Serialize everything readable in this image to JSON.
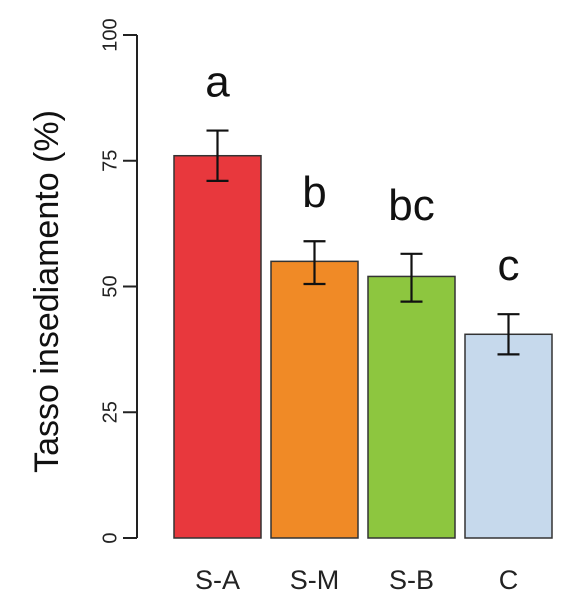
{
  "chart_data": {
    "type": "bar",
    "title": "",
    "xlabel": "",
    "ylabel": "Tasso insediamento (%)",
    "ylim": [
      0,
      100
    ],
    "yticks": [
      0,
      25,
      50,
      75,
      100
    ],
    "categories": [
      "S-A",
      "S-M",
      "S-B",
      "C"
    ],
    "values": [
      76,
      55,
      52,
      40.5
    ],
    "error_low": [
      71,
      50.5,
      47,
      36.5
    ],
    "error_high": [
      81,
      59,
      56.5,
      44.5
    ],
    "significance_letters": [
      "a",
      "b",
      "bc",
      "c"
    ],
    "colors": [
      "#e8383d",
      "#f08a26",
      "#8dc63f",
      "#c6d9ec"
    ],
    "grid": false,
    "legend": "none"
  }
}
